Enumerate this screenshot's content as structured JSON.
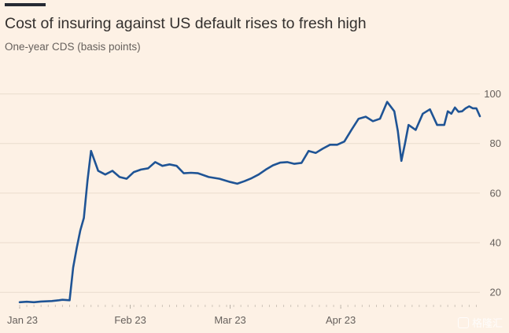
{
  "header": {
    "title": "Cost of insuring against US default rises to fresh high",
    "subtitle": "One-year CDS (basis points)"
  },
  "watermark": {
    "text": "格隆汇"
  },
  "colors": {
    "background": "#fdf1e5",
    "line": "#1f5495",
    "grid": "#eadccd",
    "text": "#66605c"
  },
  "chart_data": {
    "type": "line",
    "title": "Cost of insuring against US default rises to fresh high",
    "subtitle": "One-year CDS (basis points)",
    "xlabel": "",
    "ylabel": "",
    "x_ticks": [
      {
        "label": "Jan 23",
        "x": "2023-01-01"
      },
      {
        "label": "Feb 23",
        "x": "2023-02-01"
      },
      {
        "label": "Mar 23",
        "x": "2023-03-01"
      },
      {
        "label": "Apr 23",
        "x": "2023-04-01"
      }
    ],
    "xlim": [
      "2023-01-01",
      "2023-05-10"
    ],
    "ylim": [
      15,
      110
    ],
    "y_ticks": [
      20,
      40,
      60,
      80,
      100
    ],
    "y_axis_side": "right",
    "grid": "horizontal",
    "legend": "none",
    "series": [
      {
        "points": [
          [
            "2023-01-01",
            16.0
          ],
          [
            "2023-01-03",
            16.2
          ],
          [
            "2023-01-05",
            16.0
          ],
          [
            "2023-01-07",
            16.3
          ],
          [
            "2023-01-10",
            16.5
          ],
          [
            "2023-01-12",
            16.8
          ],
          [
            "2023-01-13",
            17.0
          ],
          [
            "2023-01-15",
            16.8
          ],
          [
            "2023-01-16",
            30.0
          ],
          [
            "2023-01-17",
            38.0
          ],
          [
            "2023-01-18",
            45.0
          ],
          [
            "2023-01-19",
            50.0
          ],
          [
            "2023-01-20",
            65.0
          ],
          [
            "2023-01-21",
            77.0
          ],
          [
            "2023-01-23",
            69.0
          ],
          [
            "2023-01-25",
            67.5
          ],
          [
            "2023-01-27",
            69.0
          ],
          [
            "2023-01-29",
            66.5
          ],
          [
            "2023-01-31",
            65.8
          ],
          [
            "2023-02-02",
            68.5
          ],
          [
            "2023-02-04",
            69.5
          ],
          [
            "2023-02-06",
            70.0
          ],
          [
            "2023-02-08",
            72.5
          ],
          [
            "2023-02-10",
            71.0
          ],
          [
            "2023-02-12",
            71.6
          ],
          [
            "2023-02-14",
            71.0
          ],
          [
            "2023-02-16",
            68.0
          ],
          [
            "2023-02-18",
            68.2
          ],
          [
            "2023-02-20",
            68.0
          ],
          [
            "2023-02-23",
            66.5
          ],
          [
            "2023-02-26",
            65.8
          ],
          [
            "2023-03-01",
            64.5
          ],
          [
            "2023-03-03",
            63.8
          ],
          [
            "2023-03-05",
            64.8
          ],
          [
            "2023-03-07",
            66.0
          ],
          [
            "2023-03-09",
            67.5
          ],
          [
            "2023-03-11",
            69.5
          ],
          [
            "2023-03-13",
            71.2
          ],
          [
            "2023-03-15",
            72.3
          ],
          [
            "2023-03-17",
            72.5
          ],
          [
            "2023-03-19",
            71.8
          ],
          [
            "2023-03-21",
            72.2
          ],
          [
            "2023-03-23",
            77.0
          ],
          [
            "2023-03-25",
            76.2
          ],
          [
            "2023-03-27",
            78.0
          ],
          [
            "2023-03-29",
            79.5
          ],
          [
            "2023-03-31",
            79.5
          ],
          [
            "2023-04-02",
            80.8
          ],
          [
            "2023-04-04",
            85.5
          ],
          [
            "2023-04-06",
            90.0
          ],
          [
            "2023-04-08",
            90.8
          ],
          [
            "2023-04-10",
            89.0
          ],
          [
            "2023-04-12",
            90.0
          ],
          [
            "2023-04-14",
            96.8
          ],
          [
            "2023-04-16",
            93.0
          ],
          [
            "2023-04-17",
            85.0
          ],
          [
            "2023-04-18",
            73.0
          ],
          [
            "2023-04-19",
            80.0
          ],
          [
            "2023-04-20",
            87.5
          ],
          [
            "2023-04-22",
            85.5
          ],
          [
            "2023-04-24",
            92.0
          ],
          [
            "2023-04-26",
            93.8
          ],
          [
            "2023-04-28",
            87.5
          ],
          [
            "2023-04-30",
            87.5
          ],
          [
            "2023-05-01",
            93.0
          ],
          [
            "2023-05-02",
            92.0
          ],
          [
            "2023-05-03",
            94.5
          ],
          [
            "2023-05-04",
            92.8
          ],
          [
            "2023-05-05",
            93.0
          ],
          [
            "2023-05-06",
            94.2
          ],
          [
            "2023-05-07",
            95.0
          ],
          [
            "2023-05-08",
            94.2
          ],
          [
            "2023-05-09",
            94.2
          ],
          [
            "2023-05-10",
            91.0
          ]
        ]
      }
    ]
  }
}
